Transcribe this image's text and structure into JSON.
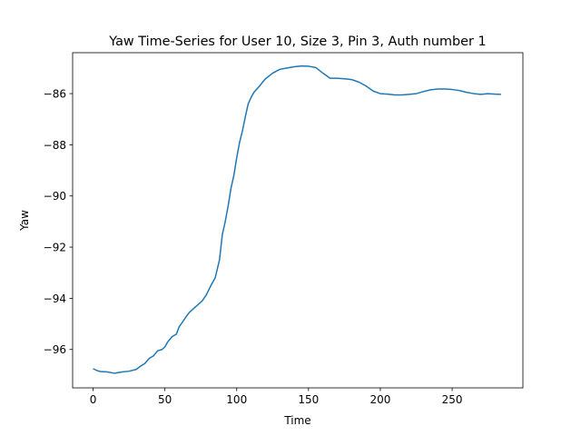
{
  "chart_data": {
    "type": "line",
    "title": "Yaw Time-Series for User 10, Size 3, Pin 3, Auth number 1",
    "xlabel": "Time",
    "ylabel": "Yaw",
    "xlim": [
      -14.25,
      299.25
    ],
    "ylim": [
      -97.5,
      -84.4
    ],
    "xticks": [
      0,
      50,
      100,
      150,
      200,
      250
    ],
    "yticks": [
      -96,
      -94,
      -92,
      -90,
      -88,
      -86
    ],
    "grid": false,
    "series": [
      {
        "color": "#1f77b4",
        "x": [
          0,
          3,
          5,
          10,
          15,
          20,
          25,
          30,
          33,
          36,
          39,
          42,
          45,
          48,
          50,
          52,
          55,
          58,
          60,
          62,
          65,
          67,
          70,
          73,
          76,
          79,
          82,
          85,
          88,
          90,
          92,
          94,
          96,
          98,
          100,
          102,
          104,
          106,
          108,
          110,
          112,
          114,
          116,
          118,
          120,
          125,
          130,
          135,
          140,
          145,
          150,
          155,
          160,
          165,
          170,
          175,
          180,
          185,
          190,
          195,
          200,
          205,
          210,
          215,
          220,
          225,
          230,
          235,
          240,
          245,
          250,
          255,
          260,
          265,
          270,
          275,
          280,
          284
        ],
        "y": [
          -96.75,
          -96.83,
          -96.86,
          -96.88,
          -96.93,
          -96.88,
          -96.85,
          -96.78,
          -96.65,
          -96.55,
          -96.35,
          -96.25,
          -96.05,
          -96.0,
          -95.9,
          -95.7,
          -95.5,
          -95.4,
          -95.1,
          -94.95,
          -94.7,
          -94.55,
          -94.4,
          -94.25,
          -94.1,
          -93.85,
          -93.5,
          -93.2,
          -92.5,
          -91.5,
          -91.0,
          -90.4,
          -89.7,
          -89.2,
          -88.5,
          -87.9,
          -87.45,
          -86.9,
          -86.4,
          -86.15,
          -85.95,
          -85.82,
          -85.7,
          -85.55,
          -85.42,
          -85.2,
          -85.05,
          -85.0,
          -84.95,
          -84.92,
          -84.93,
          -84.98,
          -85.2,
          -85.4,
          -85.4,
          -85.42,
          -85.45,
          -85.55,
          -85.7,
          -85.9,
          -86.0,
          -86.02,
          -86.05,
          -86.05,
          -86.03,
          -86.0,
          -85.92,
          -85.85,
          -85.82,
          -85.82,
          -85.84,
          -85.88,
          -85.95,
          -86.0,
          -86.03,
          -86.0,
          -86.02,
          -86.03
        ]
      }
    ]
  }
}
